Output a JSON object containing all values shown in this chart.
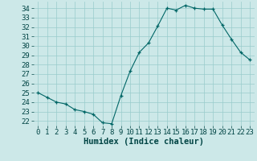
{
  "x": [
    0,
    1,
    2,
    3,
    4,
    5,
    6,
    7,
    8,
    9,
    10,
    11,
    12,
    13,
    14,
    15,
    16,
    17,
    18,
    19,
    20,
    21,
    22,
    23
  ],
  "y": [
    25.0,
    24.5,
    24.0,
    23.8,
    23.2,
    23.0,
    22.7,
    21.8,
    21.7,
    24.7,
    27.3,
    29.3,
    30.3,
    32.1,
    34.0,
    33.8,
    34.3,
    34.0,
    33.9,
    33.9,
    32.2,
    30.7,
    29.3,
    28.5
  ],
  "xlabel": "Humidex (Indice chaleur)",
  "ylim": [
    21.5,
    34.7
  ],
  "xlim": [
    -0.5,
    23.5
  ],
  "yticks": [
    22,
    23,
    24,
    25,
    26,
    27,
    28,
    29,
    30,
    31,
    32,
    33,
    34
  ],
  "xticks": [
    0,
    1,
    2,
    3,
    4,
    5,
    6,
    7,
    8,
    9,
    10,
    11,
    12,
    13,
    14,
    15,
    16,
    17,
    18,
    19,
    20,
    21,
    22,
    23
  ],
  "line_color": "#006666",
  "marker_color": "#006666",
  "bg_color": "#cce8e8",
  "grid_color": "#99cccc",
  "xlabel_fontsize": 7.5,
  "tick_fontsize": 6.5
}
